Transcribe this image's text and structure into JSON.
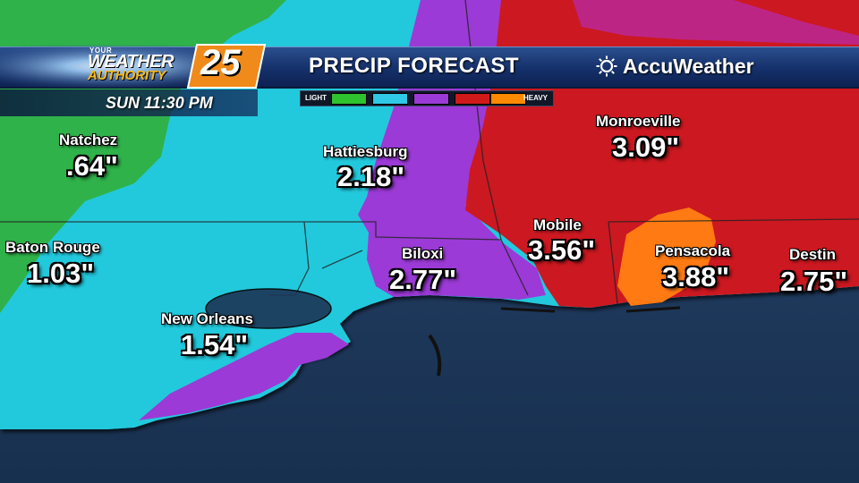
{
  "header": {
    "logo": {
      "line1": "YOUR",
      "line2": "WEATHER",
      "line3": "AUTHORITY",
      "number": "25"
    },
    "title": "PRECIP FORECAST",
    "brand": "AccuWeather",
    "time": "SUN 11:30 PM"
  },
  "legend": {
    "low_label": "LIGHT",
    "high_label": "HEAVY",
    "colors": [
      "#2fc32f",
      "#2fc8e6",
      "#9b3ad6",
      "#d01a1a",
      "#ff8a00"
    ]
  },
  "map_colors": {
    "water": "#1d3556",
    "green": "#2fb24a",
    "cyan": "#24c9dc",
    "purple": "#9b3ad6",
    "magenta": "#b72bb0",
    "red": "#cc1820",
    "orange": "#ff7a12"
  },
  "cities": [
    {
      "name": "Natchez",
      "amount": ".64\""
    },
    {
      "name": "Baton Rouge",
      "amount": "1.03\""
    },
    {
      "name": "New Orleans",
      "amount": "1.54\""
    },
    {
      "name": "Hattiesburg",
      "amount": "2.18\""
    },
    {
      "name": "Biloxi",
      "amount": "2.77\""
    },
    {
      "name": "Mobile",
      "amount": "3.56\""
    },
    {
      "name": "Monroeville",
      "amount": "3.09\""
    },
    {
      "name": "Pensacola",
      "amount": "3.88\""
    },
    {
      "name": "Destin",
      "amount": "2.75\""
    }
  ]
}
